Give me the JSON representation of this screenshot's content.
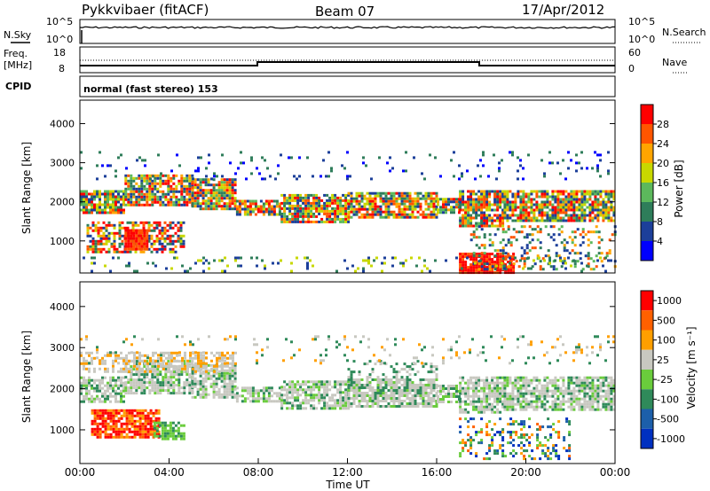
{
  "header": {
    "station": "Pykkvibaer (fitACF)",
    "beam": "Beam 07",
    "date": "17/Apr/2012"
  },
  "strip_labels": {
    "nsky": "N.Sky",
    "nsearch": "N.Search",
    "freq_line1": "Freq.",
    "freq_line2": "[MHz]",
    "nave": "Nave",
    "cpid": "CPID",
    "cpid_value": "normal (fast stereo) 153",
    "noise_ticks_left": [
      "10^5",
      "10^0"
    ],
    "noise_ticks_right": [
      "10^5",
      "10^0"
    ],
    "freq_ticks": [
      "18",
      "8"
    ],
    "nave_ticks": [
      "60",
      "0"
    ]
  },
  "colors": {
    "power_scale": [
      "#0000ff",
      "#1c3f9a",
      "#2e7d5a",
      "#5cb85c",
      "#c8d800",
      "#ffa500",
      "#ff5500",
      "#ff0000"
    ],
    "velocity_scale": [
      "#0030c0",
      "#1c5faa",
      "#2f8a5a",
      "#6acc3c",
      "#c8c8c0",
      "#ff9f00",
      "#ff6000",
      "#ff0000"
    ]
  },
  "chart_data": [
    {
      "type": "heatmap",
      "title": "Power",
      "xlabel": "",
      "ylabel": "Slant Range [km]",
      "ylim": [
        180,
        4600
      ],
      "yticks": [
        "1000",
        "2000",
        "3000",
        "4000"
      ],
      "colorbar_label": "Power [dB]",
      "colorbar_ticks": [
        "4",
        "8",
        "12",
        "16",
        "20",
        "24",
        "28"
      ],
      "clim": [
        0,
        32
      ]
    },
    {
      "type": "heatmap",
      "title": "Velocity",
      "xlabel": "Time UT",
      "ylabel": "Slant Range [km]",
      "ylim": [
        180,
        4600
      ],
      "yticks": [
        "1000",
        "2000",
        "3000",
        "4000"
      ],
      "xticks": [
        "00:00",
        "04:00",
        "08:00",
        "12:00",
        "16:00",
        "20:00",
        "00:00"
      ],
      "colorbar_label": "Velocity [m s⁻¹]",
      "colorbar_ticks": [
        "1000",
        "500",
        "100",
        "25",
        "-25",
        "-100",
        "-500",
        "-1000"
      ]
    }
  ]
}
